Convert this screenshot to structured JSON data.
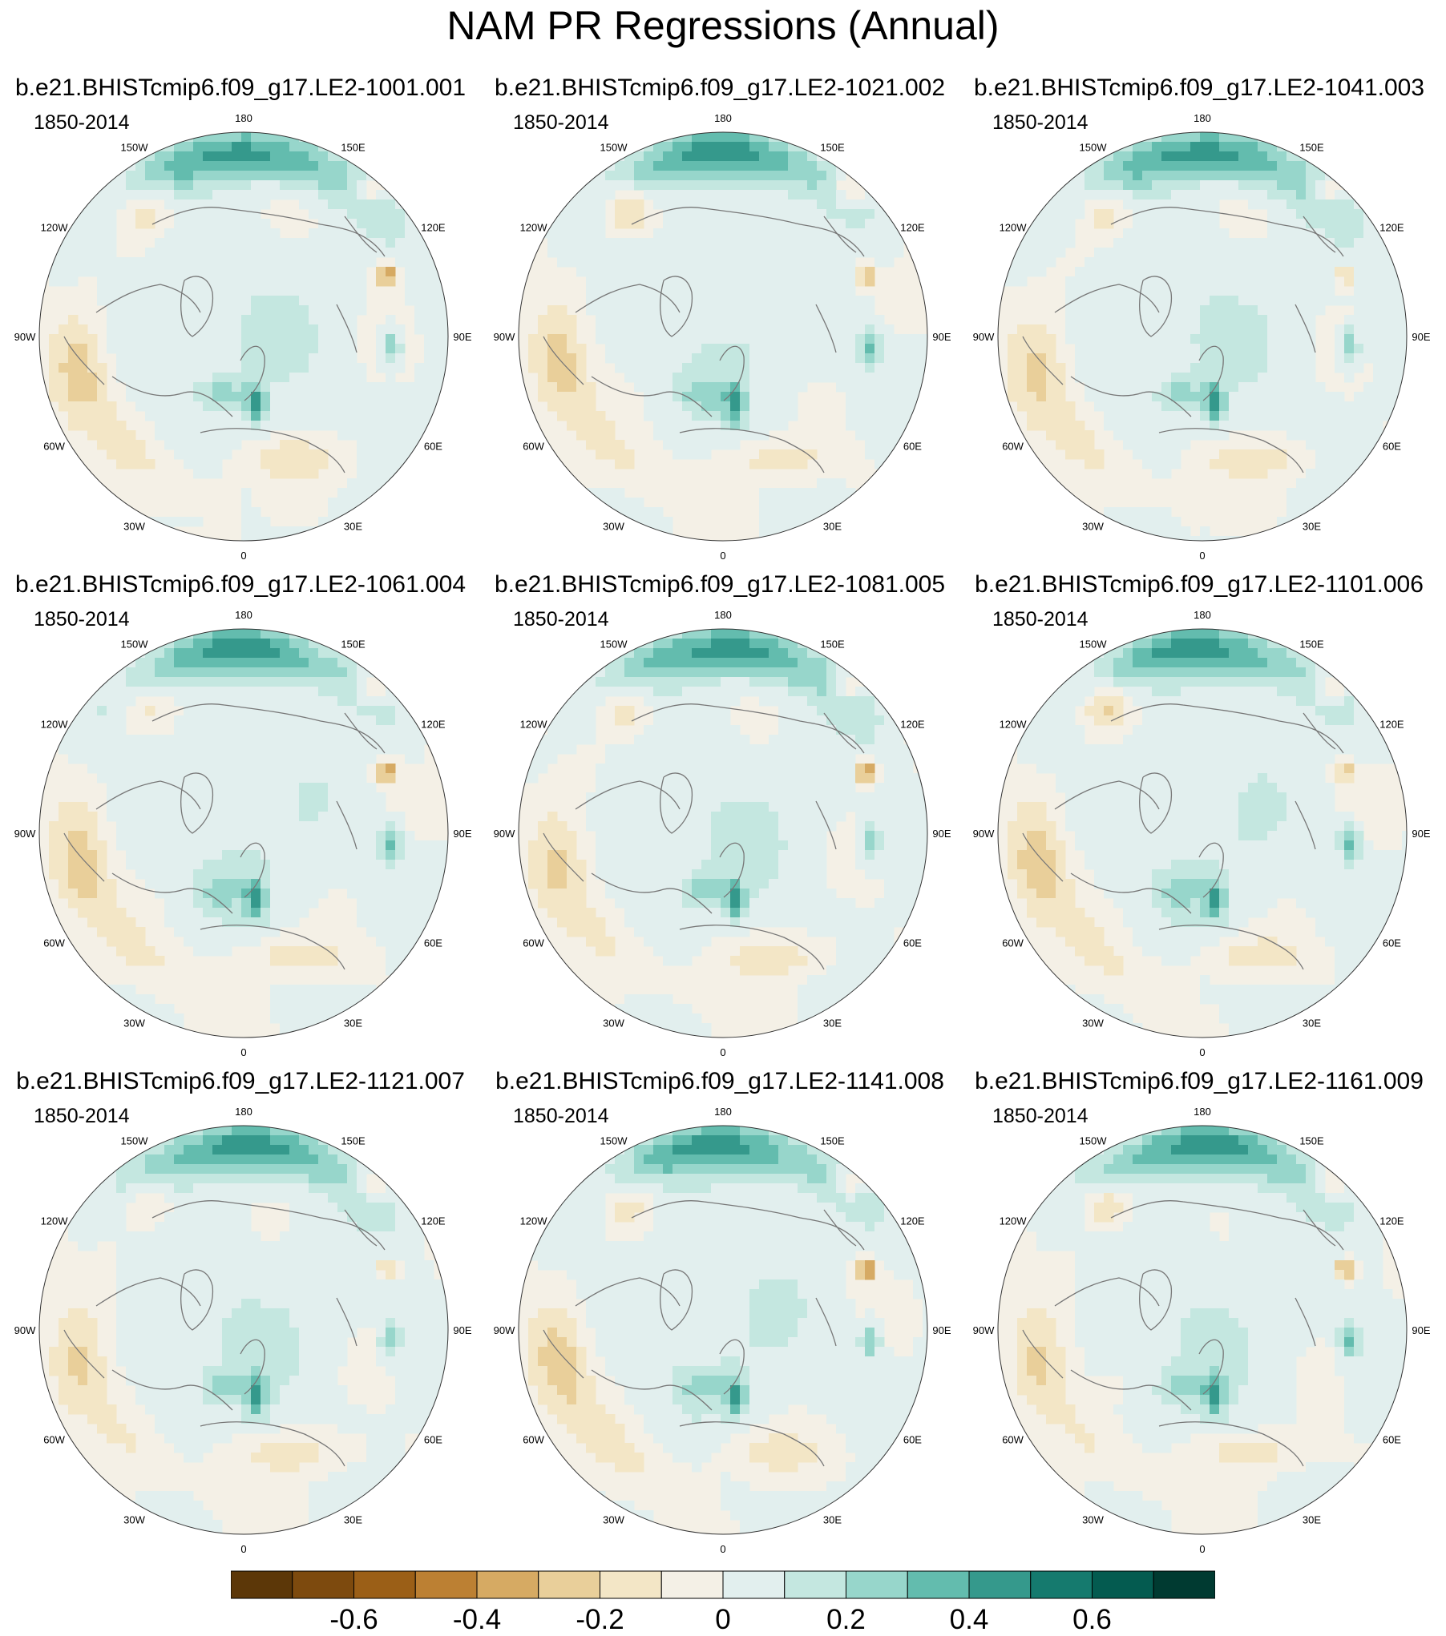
{
  "title": "NAM PR Regressions (Annual)",
  "panels": [
    {
      "name": "b.e21.BHISTcmip6.f09_g17.LE2-1001.001",
      "period": "1850-2014"
    },
    {
      "name": "b.e21.BHISTcmip6.f09_g17.LE2-1021.002",
      "period": "1850-2014"
    },
    {
      "name": "b.e21.BHISTcmip6.f09_g17.LE2-1041.003",
      "period": "1850-2014"
    },
    {
      "name": "b.e21.BHISTcmip6.f09_g17.LE2-1061.004",
      "period": "1850-2014"
    },
    {
      "name": "b.e21.BHISTcmip6.f09_g17.LE2-1081.005",
      "period": "1850-2014"
    },
    {
      "name": "b.e21.BHISTcmip6.f09_g17.LE2-1101.006",
      "period": "1850-2014"
    },
    {
      "name": "b.e21.BHISTcmip6.f09_g17.LE2-1121.007",
      "period": "1850-2014"
    },
    {
      "name": "b.e21.BHISTcmip6.f09_g17.LE2-1141.008",
      "period": "1850-2014"
    },
    {
      "name": "b.e21.BHISTcmip6.f09_g17.LE2-1161.009",
      "period": "1850-2014"
    }
  ],
  "longitude_labels": [
    "180",
    "150E",
    "120E",
    "90E",
    "60E",
    "30E",
    "0",
    "30W",
    "60W",
    "90W",
    "120W",
    "150W"
  ],
  "colorbar": {
    "colors": [
      "#5c3708",
      "#7d4a0e",
      "#9b5f17",
      "#bc8033",
      "#d6aa63",
      "#e9cf9a",
      "#f3e6c6",
      "#f4f0e6",
      "#e2efee",
      "#c4e7e0",
      "#97d6cb",
      "#63bcae",
      "#35998c",
      "#157a6e",
      "#045b50",
      "#003a31"
    ],
    "tick_values": [
      "-0.6",
      "-0.4",
      "-0.2",
      "0",
      "0.2",
      "0.4",
      "0.6"
    ]
  }
}
